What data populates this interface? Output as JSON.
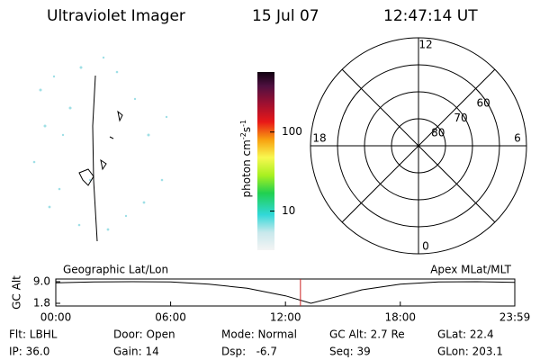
{
  "header": {
    "title": "Ultraviolet Imager",
    "date": "15 Jul 07",
    "time": "12:47:14 UT"
  },
  "colorbar": {
    "label_parts": [
      "photon cm",
      "-2",
      "s",
      "-1"
    ],
    "log": true,
    "lim": [
      3.2,
      575
    ],
    "ticks": [
      10,
      100
    ]
  },
  "polar": {
    "rlim": [
      90,
      50
    ],
    "rticks": [
      80,
      70,
      60
    ],
    "mlt_ticks": [
      12,
      18,
      6,
      0
    ]
  },
  "altitude_plot": {
    "ylabel": "GC Alt",
    "left_title": "Geographic Lat/Lon",
    "right_title": "Apex MLat/MLT",
    "xlim": [
      0,
      1439
    ],
    "xticks": [
      {
        "value": 0,
        "label": "00:00"
      },
      {
        "value": 360,
        "label": "06:00"
      },
      {
        "value": 720,
        "label": "12:00"
      },
      {
        "value": 1080,
        "label": "18:00"
      },
      {
        "value": 1439,
        "label": "23:59"
      }
    ],
    "ylim": [
      1.8,
      9.0
    ],
    "yticks": [
      {
        "value": 9.0,
        "label": "9.0"
      },
      {
        "value": 1.8,
        "label": "1.8"
      }
    ],
    "x": [
      0,
      120,
      240,
      360,
      480,
      600,
      720,
      800,
      880,
      960,
      1080,
      1200,
      1320,
      1439
    ],
    "values": [
      8.6,
      8.95,
      9.0,
      8.9,
      8.2,
      6.8,
      4.3,
      1.8,
      4.0,
      6.3,
      8.2,
      8.9,
      9.0,
      8.8
    ],
    "marker_x": 767,
    "marker_color": "#cc2222"
  },
  "footer": {
    "rows": [
      [
        "Flt: LBHL",
        "Door: Open",
        "Mode: Normal",
        "GC Alt: 2.7 Re",
        "GLat: 22.4"
      ],
      [
        "IP: 36.0",
        "Gain: 14",
        "Dsp:   -6.7",
        "Seq: 39",
        "GLon: 203.1"
      ]
    ]
  }
}
